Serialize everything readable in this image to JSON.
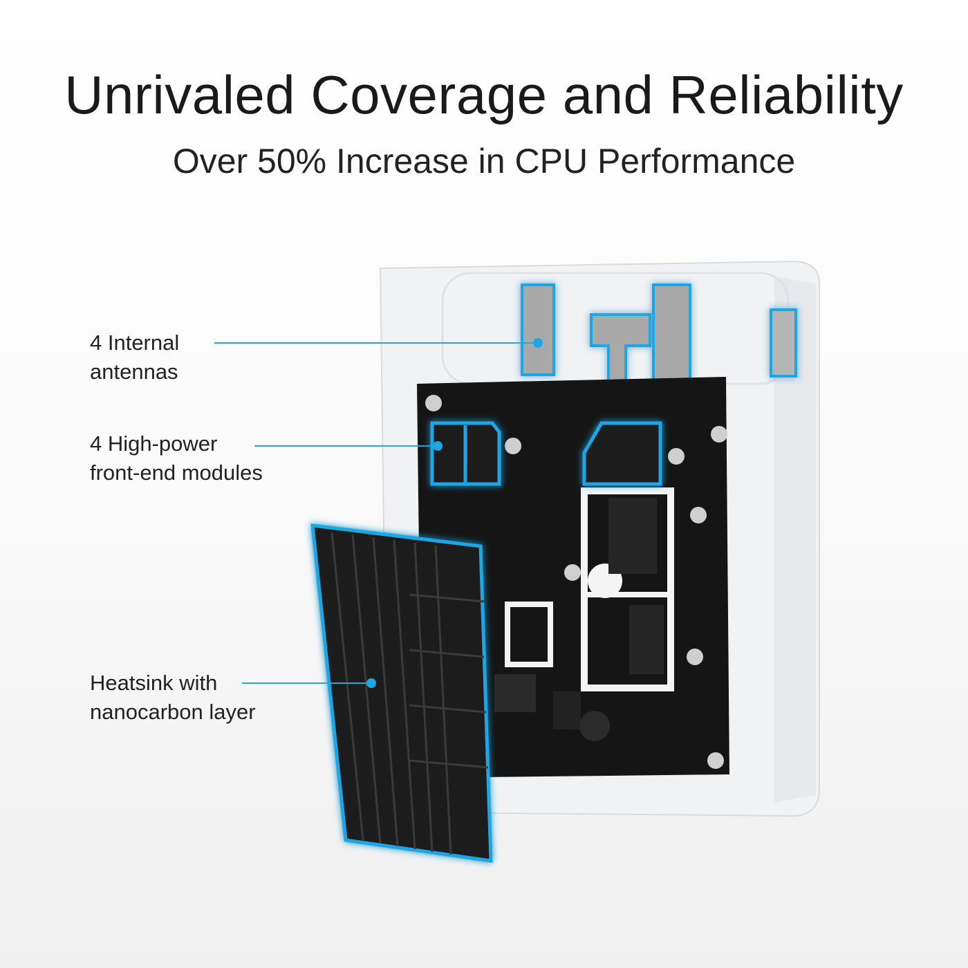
{
  "header": {
    "title": "Unrivaled Coverage and Reliability",
    "subtitle": "Over 50% Increase in CPU Performance"
  },
  "callouts": [
    {
      "line1": "4 Internal",
      "line2": "antennas"
    },
    {
      "line1": "4 High-power",
      "line2": "front-end modules"
    },
    {
      "line1": "Heatsink with",
      "line2": "nanocarbon layer"
    }
  ],
  "colors": {
    "accent": "#1ea7e4",
    "pcb": "#151515",
    "heatsink": "#1b1b1b",
    "enclosure": "#f2f3f5"
  }
}
